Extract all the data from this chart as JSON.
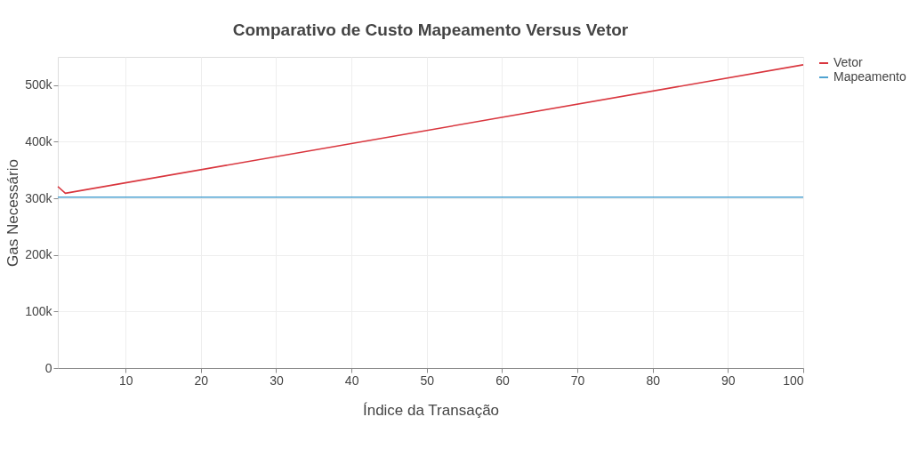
{
  "chart_data": {
    "type": "line",
    "title": "Comparativo de Custo Mapeamento Versus Vetor",
    "xlabel": "Índice da Transação",
    "ylabel": "Gas Necessário",
    "xlim": [
      1,
      100
    ],
    "xticks": [
      10,
      20,
      30,
      40,
      50,
      60,
      70,
      80,
      90,
      100
    ],
    "ylim": [
      0,
      550000
    ],
    "yticks": [
      0,
      {
        "value": 100000,
        "label": "100k"
      },
      {
        "value": 200000,
        "label": "200k"
      },
      {
        "value": 300000,
        "label": "300k"
      },
      {
        "value": 400000,
        "label": "400k"
      },
      {
        "value": 500000,
        "label": "500k"
      }
    ],
    "grid": true,
    "legend": "top right",
    "marker": "none",
    "line_style": "solid",
    "series": [
      {
        "name": "Vetor",
        "color": "#d9363e",
        "x": [
          1,
          2,
          50,
          100
        ],
        "values": [
          321000,
          309000,
          420000,
          536000
        ]
      },
      {
        "name": "Mapeamento",
        "color": "#4fa3d1",
        "x": [
          1,
          100
        ],
        "values": [
          302000,
          302000
        ]
      }
    ]
  }
}
